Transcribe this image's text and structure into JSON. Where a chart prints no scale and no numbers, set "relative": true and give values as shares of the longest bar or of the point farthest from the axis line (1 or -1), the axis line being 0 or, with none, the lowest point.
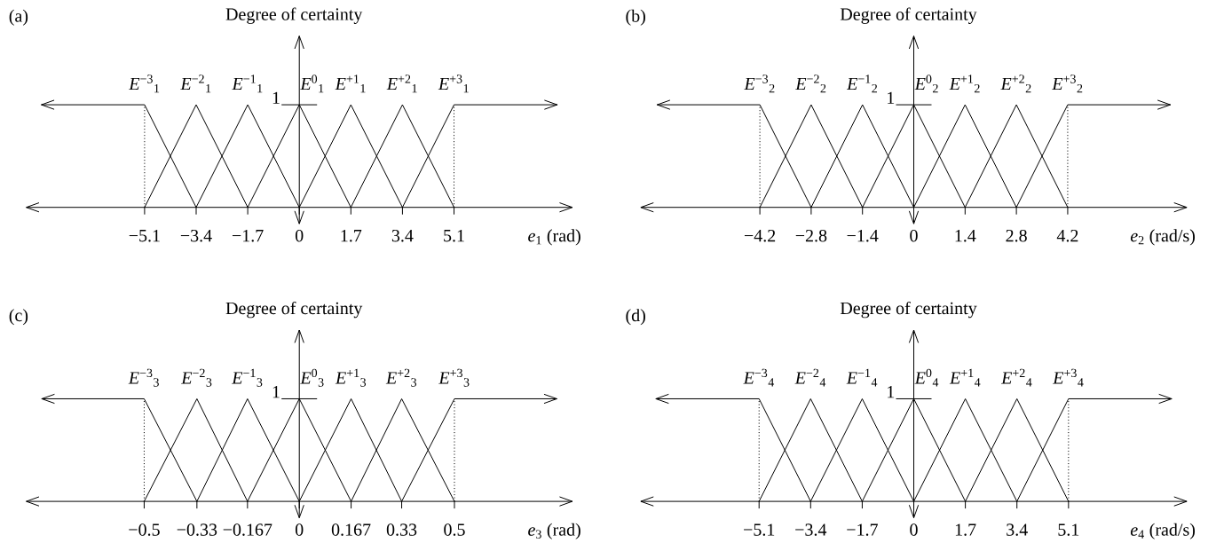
{
  "chart_data": [
    {
      "type": "line",
      "relative": true,
      "title": "(a)",
      "ylabel": "Degree of certainty",
      "xlabel": "*e*$_{1}$ (rad)",
      "xlim": [
        -9,
        9
      ],
      "xticks": [
        {
          "value": -5.1,
          "label": "−5.1"
        },
        {
          "value": -3.4,
          "label": "−3.4"
        },
        {
          "value": -1.7,
          "label": "−1.7"
        },
        0,
        1.7,
        3.4,
        5.1
      ],
      "annotations": [
        "1"
      ],
      "series": [
        {
          "name": "*E*$^{−3}$$_{1}$",
          "color": "#000000",
          "x": [
            -8.5,
            -5.1,
            -3.4
          ],
          "values": [
            1,
            1,
            0
          ]
        },
        {
          "name": "*E*$^{−2}$$_{1}$",
          "color": "#000000",
          "x": [
            -5.1,
            -3.4,
            -1.7
          ],
          "values": [
            0,
            1,
            0
          ]
        },
        {
          "name": "*E*$^{−1}$$_{1}$",
          "color": "#000000",
          "x": [
            -3.4,
            -1.7,
            0
          ],
          "values": [
            0,
            1,
            0
          ]
        },
        {
          "name": "*E*$^{0}$$_{1}$",
          "color": "#000000",
          "x": [
            -1.7,
            0,
            1.7
          ],
          "values": [
            0,
            1,
            0
          ]
        },
        {
          "name": "*E*$^{+1}$$_{1}$",
          "color": "#000000",
          "x": [
            0,
            1.7,
            3.4
          ],
          "values": [
            0,
            1,
            0
          ]
        },
        {
          "name": "*E*$^{+2}$$_{1}$",
          "color": "#000000",
          "x": [
            1.7,
            3.4,
            5.1
          ],
          "values": [
            0,
            1,
            0
          ]
        },
        {
          "name": "*E*$^{+3}$$_{1}$",
          "color": "#000000",
          "x": [
            3.4,
            5.1,
            8.5
          ],
          "values": [
            0,
            1,
            1
          ]
        }
      ],
      "ref_lines": [
        {
          "axis": "x",
          "value": -5.1,
          "line_style": "dotted"
        },
        {
          "axis": "x",
          "value": 5.1,
          "line_style": "dotted"
        }
      ]
    },
    {
      "type": "line",
      "relative": true,
      "title": "(b)",
      "ylabel": "Degree of certainty",
      "xlabel": "*e*$_{2}$ (rad/s)",
      "xlim": [
        -7.45,
        7.45
      ],
      "xticks": [
        {
          "value": -4.2,
          "label": "−4.2"
        },
        {
          "value": -2.8,
          "label": "−2.8"
        },
        {
          "value": -1.4,
          "label": "−1.4"
        },
        0,
        1.4,
        2.8,
        4.2
      ],
      "annotations": [
        "1"
      ],
      "series": [
        {
          "name": "*E*$^{−3}$$_{2}$",
          "color": "#000000",
          "x": [
            -7.0,
            -4.2,
            -2.8
          ],
          "values": [
            1,
            1,
            0
          ]
        },
        {
          "name": "*E*$^{−2}$$_{2}$",
          "color": "#000000",
          "x": [
            -4.2,
            -2.8,
            -1.4
          ],
          "values": [
            0,
            1,
            0
          ]
        },
        {
          "name": "*E*$^{−1}$$_{2}$",
          "color": "#000000",
          "x": [
            -2.8,
            -1.4,
            0
          ],
          "values": [
            0,
            1,
            0
          ]
        },
        {
          "name": "*E*$^{0}$$_{2}$",
          "color": "#000000",
          "x": [
            -1.4,
            0,
            1.4
          ],
          "values": [
            0,
            1,
            0
          ]
        },
        {
          "name": "*E*$^{+1}$$_{2}$",
          "color": "#000000",
          "x": [
            0,
            1.4,
            2.8
          ],
          "values": [
            0,
            1,
            0
          ]
        },
        {
          "name": "*E*$^{+2}$$_{2}$",
          "color": "#000000",
          "x": [
            1.4,
            2.8,
            4.2
          ],
          "values": [
            0,
            1,
            0
          ]
        },
        {
          "name": "*E*$^{+3}$$_{2}$",
          "color": "#000000",
          "x": [
            2.8,
            4.2,
            7.0
          ],
          "values": [
            0,
            1,
            1
          ]
        }
      ],
      "ref_lines": [
        {
          "axis": "x",
          "value": -4.2,
          "line_style": "dotted"
        },
        {
          "axis": "x",
          "value": 4.2,
          "line_style": "dotted"
        }
      ]
    },
    {
      "type": "line",
      "relative": true,
      "title": "(c)",
      "ylabel": "Degree of certainty",
      "xlabel": "*e*$_{3}$ (rad)",
      "xlim": [
        -0.88,
        0.88
      ],
      "xticks": [
        {
          "value": -0.5,
          "label": "−0.5"
        },
        {
          "value": -0.33,
          "label": "−0.33"
        },
        {
          "value": -0.167,
          "label": "−0.167"
        },
        0,
        0.167,
        0.33,
        0.5
      ],
      "annotations": [
        "1"
      ],
      "series": [
        {
          "name": "*E*$^{−3}$$_{3}$",
          "color": "#000000",
          "x": [
            -0.83,
            -0.5,
            -0.33
          ],
          "values": [
            1,
            1,
            0
          ]
        },
        {
          "name": "*E*$^{−2}$$_{3}$",
          "color": "#000000",
          "x": [
            -0.5,
            -0.33,
            -0.167
          ],
          "values": [
            0,
            1,
            0
          ]
        },
        {
          "name": "*E*$^{−1}$$_{3}$",
          "color": "#000000",
          "x": [
            -0.33,
            -0.167,
            0
          ],
          "values": [
            0,
            1,
            0
          ]
        },
        {
          "name": "*E*$^{0}$$_{3}$",
          "color": "#000000",
          "x": [
            -0.167,
            0,
            0.167
          ],
          "values": [
            0,
            1,
            0
          ]
        },
        {
          "name": "*E*$^{+1}$$_{3}$",
          "color": "#000000",
          "x": [
            0,
            0.167,
            0.33
          ],
          "values": [
            0,
            1,
            0
          ]
        },
        {
          "name": "*E*$^{+2}$$_{3}$",
          "color": "#000000",
          "x": [
            0.167,
            0.33,
            0.5
          ],
          "values": [
            0,
            1,
            0
          ]
        },
        {
          "name": "*E*$^{+3}$$_{3}$",
          "color": "#000000",
          "x": [
            0.33,
            0.5,
            0.83
          ],
          "values": [
            0,
            1,
            1
          ]
        }
      ],
      "ref_lines": [
        {
          "axis": "x",
          "value": -0.5,
          "line_style": "dotted"
        },
        {
          "axis": "x",
          "value": 0.5,
          "line_style": "dotted"
        }
      ]
    },
    {
      "type": "line",
      "relative": true,
      "title": "(d)",
      "ylabel": "Degree of certainty",
      "xlabel": "*e*$_{4}$ (rad/s)",
      "xlim": [
        -9,
        9
      ],
      "xticks": [
        {
          "value": -5.1,
          "label": "−5.1"
        },
        {
          "value": -3.4,
          "label": "−3.4"
        },
        {
          "value": -1.7,
          "label": "−1.7"
        },
        0,
        1.7,
        3.4,
        5.1
      ],
      "annotations": [
        "1"
      ],
      "series": [
        {
          "name": "*E*$^{−3}$$_{4}$",
          "color": "#000000",
          "x": [
            -8.5,
            -5.1,
            -3.4
          ],
          "values": [
            1,
            1,
            0
          ]
        },
        {
          "name": "*E*$^{−2}$$_{4}$",
          "color": "#000000",
          "x": [
            -5.1,
            -3.4,
            -1.7
          ],
          "values": [
            0,
            1,
            0
          ]
        },
        {
          "name": "*E*$^{−1}$$_{4}$",
          "color": "#000000",
          "x": [
            -3.4,
            -1.7,
            0
          ],
          "values": [
            0,
            1,
            0
          ]
        },
        {
          "name": "*E*$^{0}$$_{4}$",
          "color": "#000000",
          "x": [
            -1.7,
            0,
            1.7
          ],
          "values": [
            0,
            1,
            0
          ]
        },
        {
          "name": "*E*$^{+1}$$_{4}$",
          "color": "#000000",
          "x": [
            0,
            1.7,
            3.4
          ],
          "values": [
            0,
            1,
            0
          ]
        },
        {
          "name": "*E*$^{+2}$$_{4}$",
          "color": "#000000",
          "x": [
            1.7,
            3.4,
            5.1
          ],
          "values": [
            0,
            1,
            0
          ]
        },
        {
          "name": "*E*$^{+3}$$_{4}$",
          "color": "#000000",
          "x": [
            3.4,
            5.1,
            8.5
          ],
          "values": [
            0,
            1,
            1
          ]
        }
      ],
      "ref_lines": [
        {
          "axis": "x",
          "value": -5.1,
          "line_style": "dotted"
        },
        {
          "axis": "x",
          "value": 5.1,
          "line_style": "dotted"
        }
      ]
    }
  ]
}
